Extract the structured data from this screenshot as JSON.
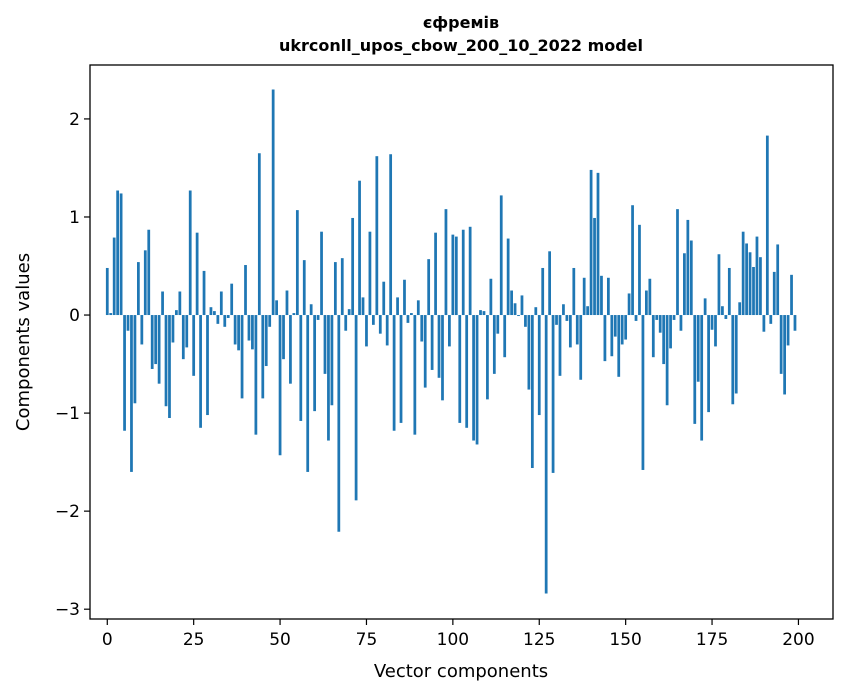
{
  "chart_data": {
    "type": "bar",
    "title_line1": "єфремів",
    "title_line2": "ukrconll_upos_cbow_200_10_2022 model",
    "xlabel": "Vector components",
    "ylabel": "Components values",
    "xlim": [
      -5,
      210
    ],
    "ylim": [
      -3.1,
      2.55
    ],
    "xticks": [
      0,
      25,
      50,
      75,
      100,
      125,
      150,
      175,
      200
    ],
    "xtick_labels": [
      "0",
      "25",
      "50",
      "75",
      "100",
      "125",
      "150",
      "175",
      "200"
    ],
    "yticks": [
      -3,
      -2,
      -1,
      0,
      1,
      2
    ],
    "ytick_labels": [
      "−3",
      "−2",
      "−1",
      "0",
      "1",
      "2"
    ],
    "bar_color": "#1f77b4",
    "grid": false,
    "values": [
      0.48,
      0.02,
      0.79,
      1.27,
      1.24,
      -1.18,
      -0.16,
      -1.6,
      -0.9,
      0.54,
      -0.3,
      0.66,
      0.87,
      -0.55,
      -0.5,
      -0.7,
      0.24,
      -0.93,
      -1.05,
      -0.28,
      0.05,
      0.24,
      -0.45,
      -0.33,
      1.27,
      -0.62,
      0.84,
      -1.15,
      0.45,
      -1.02,
      0.08,
      0.04,
      -0.09,
      0.24,
      -0.12,
      -0.03,
      0.32,
      -0.3,
      -0.36,
      -0.85,
      0.51,
      -0.26,
      -0.35,
      -1.22,
      1.65,
      -0.85,
      -0.52,
      -0.12,
      2.3,
      0.15,
      -1.43,
      -0.45,
      0.25,
      -0.7,
      0.02,
      1.07,
      -1.08,
      0.56,
      -1.6,
      0.11,
      -0.98,
      -0.05,
      0.85,
      -0.6,
      -1.28,
      -0.92,
      0.54,
      -2.21,
      0.58,
      -0.16,
      0.06,
      0.99,
      -1.89,
      1.37,
      0.18,
      -0.32,
      0.85,
      -0.1,
      1.62,
      -0.19,
      0.34,
      -0.31,
      1.64,
      -1.18,
      0.18,
      -1.1,
      0.36,
      -0.08,
      0.02,
      -1.22,
      0.15,
      -0.27,
      -0.74,
      0.57,
      -0.56,
      0.84,
      -0.64,
      -0.87,
      1.08,
      -0.32,
      0.82,
      0.8,
      -1.1,
      0.87,
      -1.15,
      0.9,
      -1.28,
      -1.32,
      0.05,
      0.04,
      -0.86,
      0.37,
      -0.6,
      -0.19,
      1.22,
      -0.43,
      0.78,
      0.25,
      0.12,
      -0.01,
      0.2,
      -0.12,
      -0.76,
      -1.56,
      0.08,
      -1.02,
      0.48,
      -2.84,
      0.65,
      -1.61,
      -0.1,
      -0.62,
      0.11,
      -0.06,
      -0.33,
      0.48,
      -0.3,
      -0.66,
      0.38,
      0.09,
      1.48,
      0.99,
      1.45,
      0.4,
      -0.47,
      0.38,
      -0.42,
      -0.22,
      -0.63,
      -0.3,
      -0.25,
      0.22,
      1.12,
      -0.06,
      0.92,
      -1.58,
      0.25,
      0.37,
      -0.43,
      -0.05,
      -0.18,
      -0.5,
      -0.92,
      -0.34,
      -0.05,
      1.08,
      -0.16,
      0.63,
      0.97,
      0.76,
      -1.11,
      -0.68,
      -1.28,
      0.17,
      -0.99,
      -0.15,
      -0.32,
      0.62,
      0.09,
      -0.04,
      0.48,
      -0.91,
      -0.8,
      0.13,
      0.85,
      0.73,
      0.64,
      0.49,
      0.8,
      0.59,
      -0.17,
      1.83,
      -0.09,
      0.44,
      0.72,
      -0.6,
      -0.81,
      -0.31,
      0.41,
      -0.16
    ]
  }
}
